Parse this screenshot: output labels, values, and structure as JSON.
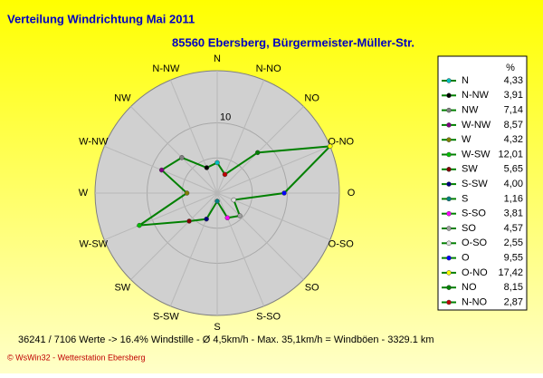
{
  "chart_data": {
    "type": "radar",
    "title": "Verteilung Windrichtung   Mai 2011",
    "subtitle": "85560 Ebersberg, Bürgermeister-Müller-Str.",
    "legend_header": "%",
    "categories": [
      "N",
      "N-NW",
      "NW",
      "W-NW",
      "W",
      "W-SW",
      "SW",
      "S-SW",
      "S",
      "S-SO",
      "SO",
      "O-SO",
      "O",
      "O-NO",
      "NO",
      "N-NO"
    ],
    "values": [
      4.33,
      3.91,
      7.14,
      8.57,
      4.32,
      12.01,
      5.65,
      4.0,
      1.16,
      3.81,
      4.57,
      2.55,
      9.55,
      17.42,
      8.15,
      2.87
    ],
    "value_labels": [
      "4,33",
      "3,91",
      "7,14",
      "8,57",
      "4,32",
      "12,01",
      "5,65",
      "4,00",
      "1,16",
      "3,81",
      "4,57",
      "2,55",
      "9,55",
      "17,42",
      "8,15",
      "2,87"
    ],
    "point_colors": [
      "#00c0c0",
      "#000000",
      "#808080",
      "#800080",
      "#808000",
      "#00c000",
      "#800000",
      "#000080",
      "#008080",
      "#ff00ff",
      "#a0a0a0",
      "#e0e0e0",
      "#0000ff",
      "#ffff00",
      "#008000",
      "#c00000"
    ],
    "line_color": "#008000",
    "rlim": [
      0,
      17.42
    ],
    "rgrid": [
      5,
      10
    ],
    "rticks": [
      10
    ],
    "footer": "36241 / 7106 Werte  -> 16.4% Windstille   -   Ø 4,5km/h  -  Max. 35,1km/h = Windböen   -   3329.1 km",
    "credit": "© WsWin32  -  Wetterstation Ebersberg"
  }
}
